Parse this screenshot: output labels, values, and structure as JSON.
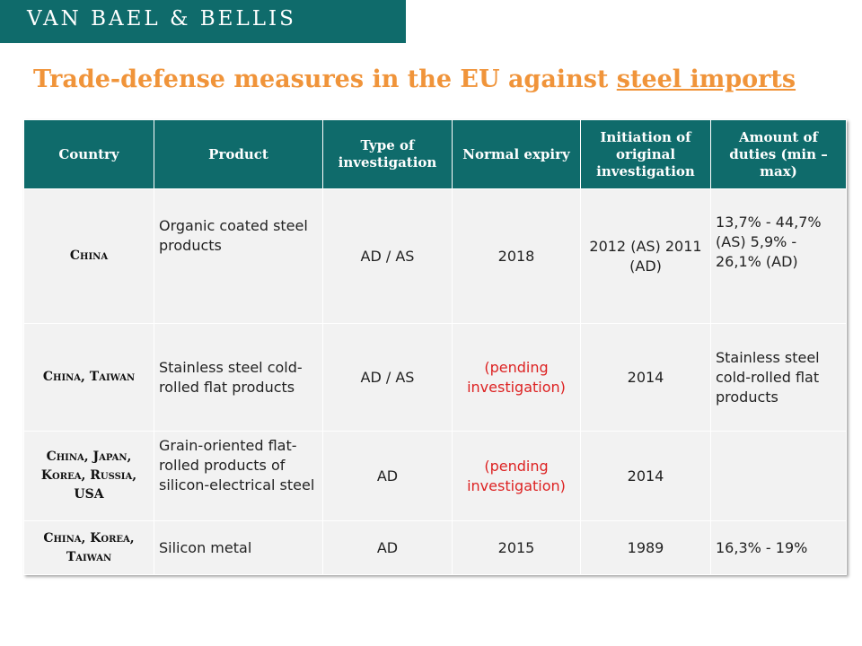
{
  "header": {
    "brand": "VAN BAEL & BELLIS"
  },
  "title": {
    "prefix": "Trade-defense measures in the EU against ",
    "underlined": "steel imports"
  },
  "table": {
    "headers": {
      "country": "Country",
      "product": "Product",
      "type": "Type of investigation",
      "expiry": "Normal expiry",
      "initiation": "Initiation of original investigation",
      "amount": "Amount of duties (min – max)"
    },
    "rows": [
      {
        "country": "China",
        "product": "Organic coated steel products",
        "type": "AD / AS",
        "expiry": "2018",
        "initiation": "2012 (AS) 2011 (AD)",
        "amount": "13,7% - 44,7% (AS) 5,9% - 26,1% (AD)"
      },
      {
        "country": "China, Taiwan",
        "product": "Stainless steel cold-rolled flat products",
        "type": "AD / AS",
        "expiry": "(pending investigation)",
        "initiation": "2014",
        "amount": "Stainless steel cold-rolled flat products"
      },
      {
        "country": "China, Japan, Korea, Russia, USA",
        "product": "Grain-oriented flat-rolled products of silicon-electrical steel",
        "type": "AD",
        "expiry": "(pending investigation)",
        "initiation": "2014",
        "amount": ""
      },
      {
        "country": "China, Korea, Taiwan",
        "product": "Silicon metal",
        "type": "AD",
        "expiry": "2015",
        "initiation": "1989",
        "amount": "16,3% - 19%"
      }
    ]
  }
}
